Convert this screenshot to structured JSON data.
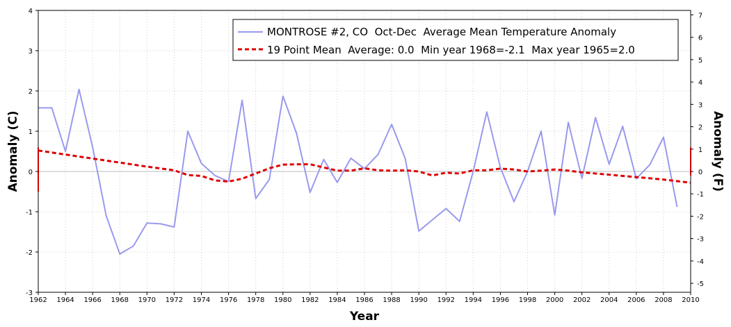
{
  "chart_data": {
    "type": "line",
    "title": "",
    "xlabel": "Year",
    "ylabel_left": "Anomaly (C)",
    "ylabel_right": "Anomaly (F)",
    "xlim": [
      1962,
      2010
    ],
    "ylim_left": [
      -3,
      4
    ],
    "ylim_right": [
      -5.4,
      7.2
    ],
    "x_ticks": [
      1962,
      1964,
      1966,
      1968,
      1970,
      1972,
      1974,
      1976,
      1978,
      1980,
      1982,
      1984,
      1986,
      1988,
      1990,
      1992,
      1994,
      1996,
      1998,
      2000,
      2002,
      2004,
      2006,
      2008,
      2010
    ],
    "y_ticks_left": [
      -3,
      -2,
      -1,
      0,
      1,
      2,
      3,
      4
    ],
    "y_ticks_right": [
      -5,
      -4,
      -3,
      -2,
      -1,
      0,
      1,
      2,
      3,
      4,
      5,
      6,
      7
    ],
    "grid": true,
    "legend_position": "top-right",
    "series": [
      {
        "name": "MONTROSE #2, CO  Oct-Dec  Average Mean Temperature Anomaly",
        "color": "#9999ee",
        "style": "solid",
        "x": [
          1962,
          1963,
          1964,
          1965,
          1966,
          1967,
          1968,
          1969,
          1970,
          1971,
          1972,
          1973,
          1974,
          1975,
          1976,
          1977,
          1978,
          1979,
          1980,
          1981,
          1982,
          1983,
          1984,
          1985,
          1986,
          1987,
          1988,
          1989,
          1990,
          1991,
          1992,
          1993,
          1994,
          1995,
          1996,
          1997,
          1998,
          1999,
          2000,
          2001,
          2002,
          2003,
          2004,
          2005,
          2006,
          2007,
          2008,
          2009
        ],
        "y": [
          1.58,
          1.58,
          0.5,
          2.04,
          0.6,
          -1.1,
          -2.05,
          -1.85,
          -1.28,
          -1.3,
          -1.38,
          1.0,
          0.2,
          -0.1,
          -0.25,
          1.77,
          -0.67,
          -0.2,
          1.87,
          0.95,
          -0.52,
          0.3,
          -0.27,
          0.33,
          0.07,
          0.42,
          1.17,
          0.32,
          -1.48,
          -1.2,
          -0.92,
          -1.24,
          0.0,
          1.48,
          0.1,
          -0.75,
          0.0,
          1.0,
          -1.08,
          1.22,
          -0.17,
          1.34,
          0.18,
          1.12,
          -0.18,
          0.17,
          0.85,
          -0.88
        ]
      },
      {
        "name": "19 Point Mean  Average: 0.0  Min year 1968=-2.1  Max year 1965=2.0",
        "color": "#dd0000",
        "style": "dashed",
        "x": [
          1962,
          1964,
          1966,
          1968,
          1970,
          1972,
          1973,
          1974,
          1975,
          1976,
          1977,
          1978,
          1979,
          1980,
          1981,
          1982,
          1983,
          1984,
          1985,
          1986,
          1987,
          1988,
          1989,
          1990,
          1991,
          1992,
          1993,
          1994,
          1995,
          1996,
          1997,
          1998,
          1999,
          2000,
          2001,
          2002,
          2004,
          2006,
          2008,
          2010
        ],
        "y": [
          0.52,
          0.42,
          0.32,
          0.22,
          0.12,
          0.03,
          -0.09,
          -0.11,
          -0.22,
          -0.25,
          -0.18,
          -0.05,
          0.08,
          0.17,
          0.18,
          0.18,
          0.1,
          0.02,
          0.02,
          0.08,
          0.03,
          0.02,
          0.03,
          0.0,
          -0.1,
          -0.03,
          -0.05,
          0.03,
          0.03,
          0.07,
          0.05,
          0.0,
          0.02,
          0.05,
          0.02,
          -0.02,
          -0.08,
          -0.14,
          -0.2,
          -0.28
        ]
      }
    ]
  }
}
